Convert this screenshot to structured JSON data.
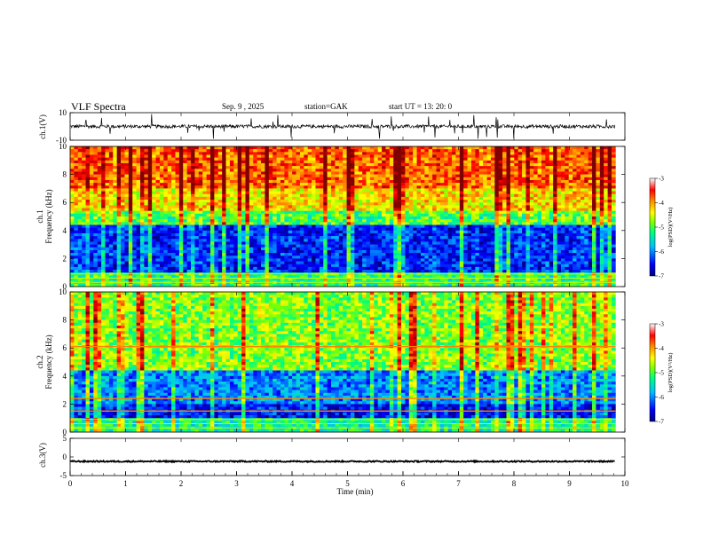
{
  "header": {
    "title": "VLF  Spectra",
    "date": "Sep. 9  , 2025",
    "station": "station=GAK",
    "start": "start  UT  =    13: 20: 0"
  },
  "colors": {
    "waveform": "#000000",
    "axes": "#000000",
    "background": "#ffffff",
    "colorscale": [
      "#00007f",
      "#0000ff",
      "#00bfff",
      "#00ff7f",
      "#7fff00",
      "#ffff00",
      "#ff7f00",
      "#ff0000",
      "#7f0000"
    ]
  },
  "chart_data": [
    {
      "type": "line",
      "panel": "ch1-waveform",
      "ylabel": "ch.1(V)",
      "ylim": [
        -10,
        10
      ],
      "yticks": [
        "10",
        "-10"
      ],
      "xlim": [
        0,
        9.83
      ],
      "baseline_v": 0.0,
      "noise_amplitude_v": 2.5,
      "spike_amplitude_v": 9
    },
    {
      "type": "heatmap",
      "panel": "ch1-spectrogram",
      "ylabel": "ch.1\nFrequency  (kHz)",
      "ylim": [
        0,
        10
      ],
      "yticks": [
        "0",
        "2",
        "4",
        "6",
        "8",
        "10"
      ],
      "xlim": [
        0,
        9.83
      ],
      "frequency_bands_khz": [
        {
          "from": 0,
          "to": 1.0,
          "level": -5.2
        },
        {
          "from": 1.0,
          "to": 4.5,
          "level": -6.4
        },
        {
          "from": 4.5,
          "to": 5.5,
          "level": -5.0
        },
        {
          "from": 5.5,
          "to": 7.0,
          "level": -4.3
        },
        {
          "from": 7.0,
          "to": 10,
          "level": -3.8
        }
      ],
      "colorbar": {
        "label": "log(PSD)(V²/Hz)",
        "range": [
          -7,
          -3
        ],
        "ticks": [
          "-3",
          "-4",
          "-5",
          "-6",
          "-7"
        ]
      }
    },
    {
      "type": "heatmap",
      "panel": "ch2-spectrogram",
      "ylabel": "ch.2\nFrequency  (kHz)",
      "ylim": [
        0,
        10
      ],
      "yticks": [
        "0",
        "2",
        "4",
        "6",
        "8",
        "10"
      ],
      "xlim": [
        0,
        9.83
      ],
      "frequency_bands_khz": [
        {
          "from": 0,
          "to": 1.0,
          "level": -5.3
        },
        {
          "from": 1.0,
          "to": 2.0,
          "level": -6.5
        },
        {
          "from": 2.0,
          "to": 4.5,
          "level": -6.0
        },
        {
          "from": 4.5,
          "to": 10,
          "level": -4.8
        }
      ],
      "tone_lines_khz": [
        6.1,
        2.4,
        1.5
      ],
      "colorbar": {
        "label": "log(PSD)(V²/Hz)",
        "range": [
          -7,
          -3
        ],
        "ticks": [
          "-3",
          "-4",
          "-5",
          "-6",
          "-7"
        ]
      }
    },
    {
      "type": "line",
      "panel": "ch3-waveform",
      "ylabel": "ch.3(V)",
      "ylim": [
        -5,
        5
      ],
      "yticks": [
        "5",
        "0",
        "-5"
      ],
      "xlim": [
        0,
        9.83
      ],
      "baseline_v": -1.2,
      "xlabel": "Time  (min)",
      "xticks": [
        "0",
        "1",
        "2",
        "3",
        "4",
        "5",
        "6",
        "7",
        "8",
        "9",
        "10"
      ]
    }
  ]
}
